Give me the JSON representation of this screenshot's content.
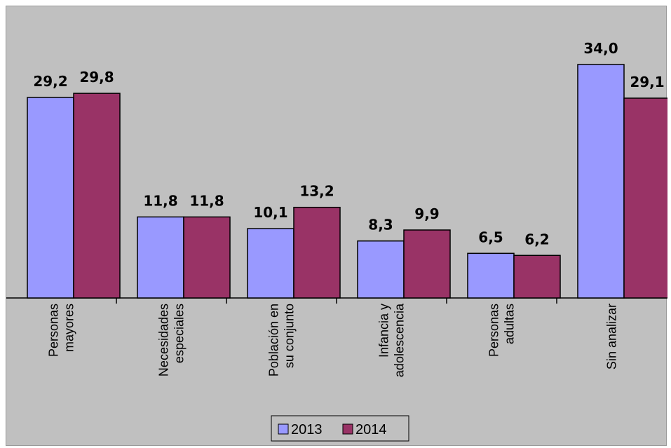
{
  "chart_data": {
    "type": "bar",
    "categories": [
      [
        "Personas",
        "mayores"
      ],
      [
        "Necesidades",
        "especiales"
      ],
      [
        "Población en",
        "su conjunto"
      ],
      [
        "Infancia y",
        "adolescencia"
      ],
      [
        "Personas",
        "adultas"
      ],
      [
        "Sin analizar"
      ]
    ],
    "series": [
      {
        "name": "2013",
        "color": "#9999ff",
        "values": [
          29.2,
          11.8,
          10.1,
          8.3,
          6.5,
          34.0
        ],
        "labels": [
          "29,2",
          "11,8",
          "10,1",
          "8,3",
          "6,5",
          "34,0"
        ]
      },
      {
        "name": "2014",
        "color": "#993366",
        "values": [
          29.8,
          11.8,
          13.2,
          9.9,
          6.2,
          29.1
        ],
        "labels": [
          "29,8",
          "11,8",
          "13,2",
          "9,9",
          "6,2",
          "29,1"
        ]
      }
    ],
    "ylim": [
      0,
      35
    ],
    "grid": false,
    "legend_position": "bottom-center",
    "background": "#c0c0c0"
  }
}
